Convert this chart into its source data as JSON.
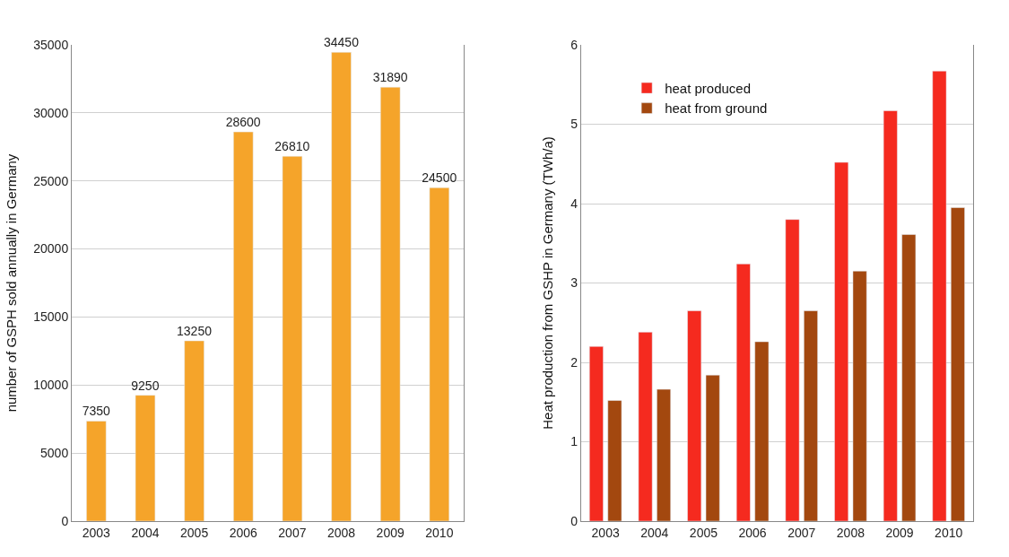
{
  "chart_data": [
    {
      "type": "bar",
      "ylabel": "number of GSPH sold annually in Germany",
      "categories": [
        "2003",
        "2004",
        "2005",
        "2006",
        "2007",
        "2008",
        "2009",
        "2010"
      ],
      "series": [
        {
          "color": "#f5a42a",
          "values": [
            7350,
            9250,
            13250,
            28600,
            26810,
            34450,
            31890,
            24500
          ]
        }
      ],
      "data_labels": true,
      "ylim": [
        0,
        35000
      ],
      "yticks": [
        0,
        5000,
        10000,
        15000,
        20000,
        25000,
        30000,
        35000
      ],
      "grid": "y",
      "legend": false
    },
    {
      "type": "bar",
      "ylabel": "Heat production from GSHP in Germany (TWh/a)",
      "categories": [
        "2003",
        "2004",
        "2005",
        "2006",
        "2007",
        "2008",
        "2009",
        "2010"
      ],
      "series": [
        {
          "name": "heat produced",
          "color": "#f52a1f",
          "values": [
            2.2,
            2.38,
            2.65,
            3.24,
            3.8,
            4.52,
            5.17,
            5.67
          ]
        },
        {
          "name": "heat from ground",
          "color": "#a3480f",
          "values": [
            1.52,
            1.66,
            1.84,
            2.26,
            2.65,
            3.15,
            3.61,
            3.95
          ]
        }
      ],
      "ylim": [
        0,
        6
      ],
      "yticks": [
        0,
        1,
        2,
        3,
        4,
        5,
        6
      ],
      "grid": "y",
      "legend": "top left"
    }
  ]
}
